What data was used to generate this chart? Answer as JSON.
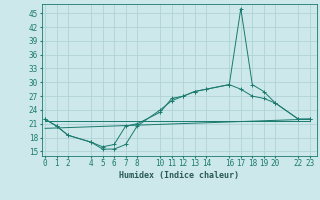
{
  "title": "",
  "xlabel": "Humidex (Indice chaleur)",
  "bg_color": "#cce8ea",
  "grid_color": "#aacfd2",
  "line_color": "#1a7a6e",
  "tick_color": "#2a5a56",
  "x_ticks": [
    0,
    1,
    2,
    4,
    5,
    6,
    7,
    8,
    10,
    11,
    12,
    13,
    14,
    16,
    17,
    18,
    19,
    20,
    22,
    23
  ],
  "xlim": [
    -0.3,
    23.6
  ],
  "ylim": [
    14,
    47
  ],
  "yticks": [
    15,
    18,
    21,
    24,
    27,
    30,
    33,
    36,
    39,
    42,
    45
  ],
  "line1_x": [
    0,
    1,
    2,
    4,
    5,
    6,
    7,
    8,
    10,
    11,
    12,
    13,
    14,
    16,
    17,
    18,
    19,
    20,
    22,
    23
  ],
  "line1_y": [
    22,
    20.5,
    18.5,
    17,
    15.5,
    15.5,
    16.5,
    20.5,
    24,
    26,
    27,
    28,
    28.5,
    29.5,
    46,
    29.5,
    28,
    25.5,
    22,
    22
  ],
  "line2_x": [
    0,
    1,
    2,
    4,
    5,
    6,
    7,
    8,
    10,
    11,
    12,
    13,
    14,
    16,
    17,
    18,
    19,
    20,
    22,
    23
  ],
  "line2_y": [
    22,
    20.5,
    18.5,
    17,
    16,
    16.5,
    20.5,
    21,
    23.5,
    26.5,
    27,
    28,
    28.5,
    29.5,
    28.5,
    27,
    26.5,
    25.5,
    22,
    22
  ],
  "line3_x": [
    0,
    23
  ],
  "line3_y": [
    21.5,
    21.5
  ],
  "line4_x": [
    0,
    23
  ],
  "line4_y": [
    20,
    22
  ],
  "title_fontsize": 7,
  "label_fontsize": 5.5,
  "xlabel_fontsize": 6
}
